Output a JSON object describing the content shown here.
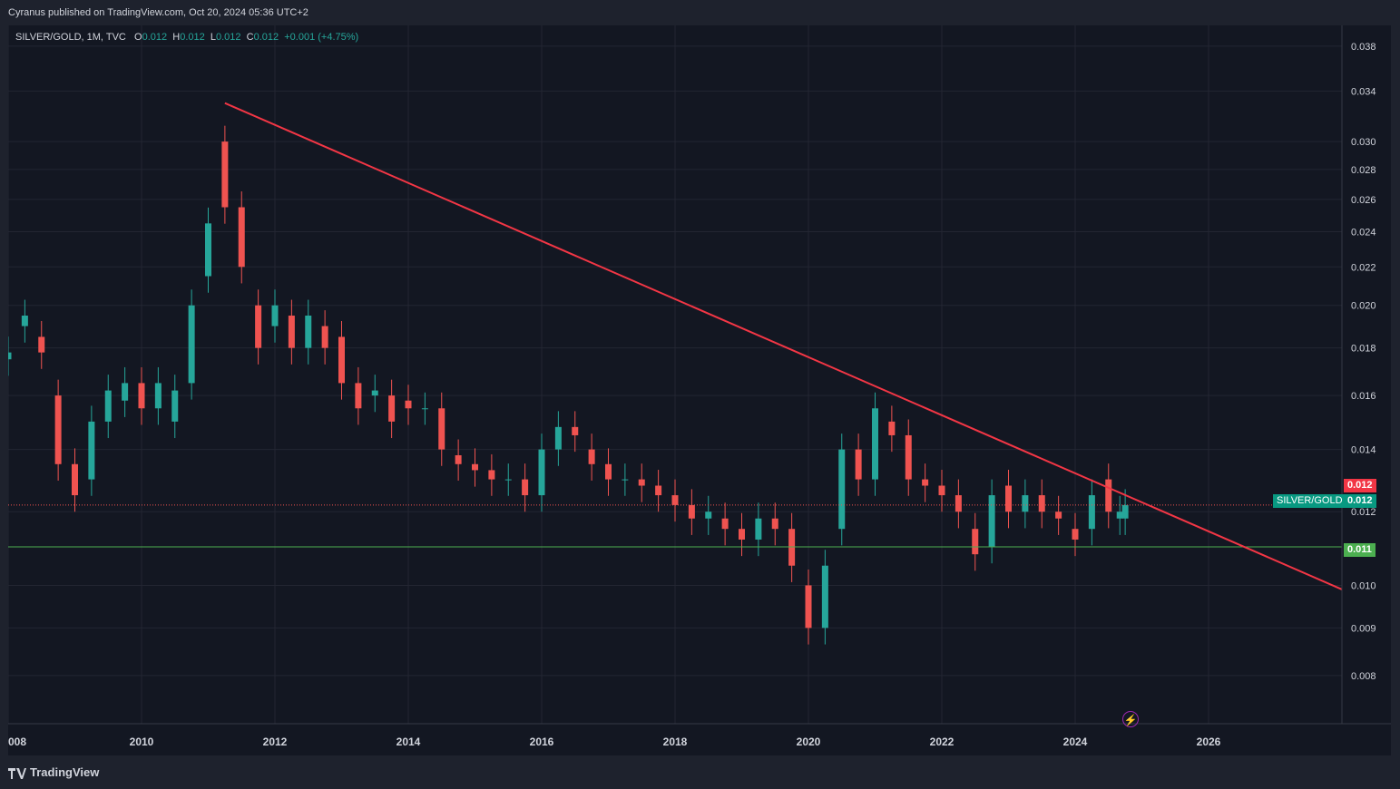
{
  "header": {
    "published": "Cyranus published on TradingView.com, Oct 20, 2024 05:36 UTC+2"
  },
  "legend": {
    "symbol": "SILVER/GOLD, 1M, TVC",
    "o_label": "O",
    "o_value": "0.012",
    "h_label": "H",
    "h_value": "0.012",
    "l_label": "L",
    "l_value": "0.012",
    "c_label": "C",
    "c_value": "0.012",
    "change": "+0.001 (+4.75%)"
  },
  "footer": {
    "brand": "TradingView"
  },
  "badges": {
    "price_red": "0.012",
    "symbol_name": "SILVER/GOLD",
    "price_green": "0.012",
    "support": "0.011"
  },
  "colors": {
    "up": "#26a69a",
    "down": "#ef5350",
    "trendline": "#f23645",
    "support": "#4caf50",
    "background": "#131722"
  },
  "chart_data": {
    "type": "candlestick",
    "symbol": "SILVER/GOLD",
    "interval": "1M",
    "y_scale": "log",
    "y_ticks": [
      "0.038",
      "0.034",
      "0.030",
      "0.028",
      "0.026",
      "0.024",
      "0.022",
      "0.020",
      "0.018",
      "0.016",
      "0.014",
      "0.012",
      "0.010",
      "0.009",
      "0.008"
    ],
    "x_ticks": [
      "008",
      "2010",
      "2012",
      "2014",
      "2016",
      "2018",
      "2020",
      "2022",
      "2024",
      "2026"
    ],
    "x_range": [
      2008.0,
      2028.0
    ],
    "y_range": [
      0.0071,
      0.04
    ],
    "series": [
      {
        "name": "SILVER/GOLD",
        "points": [
          [
            2008.0,
            0.0175,
            0.0178
          ],
          [
            2008.25,
            0.019,
            0.0195
          ],
          [
            2008.5,
            0.0185,
            0.0178
          ],
          [
            2008.75,
            0.016,
            0.0135
          ],
          [
            2009.0,
            0.0135,
            0.0125
          ],
          [
            2009.25,
            0.013,
            0.015
          ],
          [
            2009.5,
            0.015,
            0.0162
          ],
          [
            2009.75,
            0.0158,
            0.0165
          ],
          [
            2010.0,
            0.0165,
            0.0155
          ],
          [
            2010.25,
            0.0155,
            0.0165
          ],
          [
            2010.5,
            0.015,
            0.0162
          ],
          [
            2010.75,
            0.0165,
            0.02
          ],
          [
            2011.0,
            0.0215,
            0.0245
          ],
          [
            2011.25,
            0.03,
            0.0255
          ],
          [
            2011.5,
            0.0255,
            0.022
          ],
          [
            2011.75,
            0.02,
            0.018
          ],
          [
            2012.0,
            0.019,
            0.02
          ],
          [
            2012.25,
            0.0195,
            0.018
          ],
          [
            2012.5,
            0.018,
            0.0195
          ],
          [
            2012.75,
            0.019,
            0.018
          ],
          [
            2013.0,
            0.0185,
            0.0165
          ],
          [
            2013.25,
            0.0165,
            0.0155
          ],
          [
            2013.5,
            0.016,
            0.0162
          ],
          [
            2013.75,
            0.016,
            0.015
          ],
          [
            2014.0,
            0.0158,
            0.0155
          ],
          [
            2014.25,
            0.0155,
            0.0155
          ],
          [
            2014.5,
            0.0155,
            0.014
          ],
          [
            2014.75,
            0.0138,
            0.0135
          ],
          [
            2015.0,
            0.0135,
            0.0133
          ],
          [
            2015.25,
            0.0133,
            0.013
          ],
          [
            2015.5,
            0.013,
            0.013
          ],
          [
            2015.75,
            0.013,
            0.0125
          ],
          [
            2016.0,
            0.0125,
            0.014
          ],
          [
            2016.25,
            0.014,
            0.0148
          ],
          [
            2016.5,
            0.0148,
            0.0145
          ],
          [
            2016.75,
            0.014,
            0.0135
          ],
          [
            2017.0,
            0.0135,
            0.013
          ],
          [
            2017.25,
            0.013,
            0.013
          ],
          [
            2017.5,
            0.013,
            0.0128
          ],
          [
            2017.75,
            0.0128,
            0.0125
          ],
          [
            2018.0,
            0.0125,
            0.0122
          ],
          [
            2018.25,
            0.0122,
            0.0118
          ],
          [
            2018.5,
            0.0118,
            0.012
          ],
          [
            2018.75,
            0.0118,
            0.0115
          ],
          [
            2019.0,
            0.0115,
            0.0112
          ],
          [
            2019.25,
            0.0112,
            0.0118
          ],
          [
            2019.5,
            0.0118,
            0.0115
          ],
          [
            2019.75,
            0.0115,
            0.0105
          ],
          [
            2020.0,
            0.01,
            0.009
          ],
          [
            2020.25,
            0.009,
            0.0105
          ],
          [
            2020.5,
            0.0115,
            0.014
          ],
          [
            2020.75,
            0.014,
            0.013
          ],
          [
            2021.0,
            0.013,
            0.0155
          ],
          [
            2021.25,
            0.015,
            0.0145
          ],
          [
            2021.5,
            0.0145,
            0.013
          ],
          [
            2021.75,
            0.013,
            0.0128
          ],
          [
            2022.0,
            0.0128,
            0.0125
          ],
          [
            2022.25,
            0.0125,
            0.012
          ],
          [
            2022.5,
            0.0115,
            0.0108
          ],
          [
            2022.75,
            0.011,
            0.0125
          ],
          [
            2023.0,
            0.0128,
            0.012
          ],
          [
            2023.25,
            0.012,
            0.0125
          ],
          [
            2023.5,
            0.0125,
            0.012
          ],
          [
            2023.75,
            0.012,
            0.0118
          ],
          [
            2024.0,
            0.0115,
            0.0112
          ],
          [
            2024.25,
            0.0115,
            0.0125
          ],
          [
            2024.5,
            0.013,
            0.012
          ],
          [
            2024.67,
            0.0118,
            0.012
          ],
          [
            2024.75,
            0.0118,
            0.0122
          ]
        ]
      }
    ],
    "trendline": {
      "from": [
        2011.25,
        0.033
      ],
      "to": [
        2028.0,
        0.0099
      ]
    },
    "horizontal_lines": [
      {
        "name": "support",
        "value": 0.011
      },
      {
        "name": "last-price",
        "value": 0.0122
      }
    ]
  }
}
